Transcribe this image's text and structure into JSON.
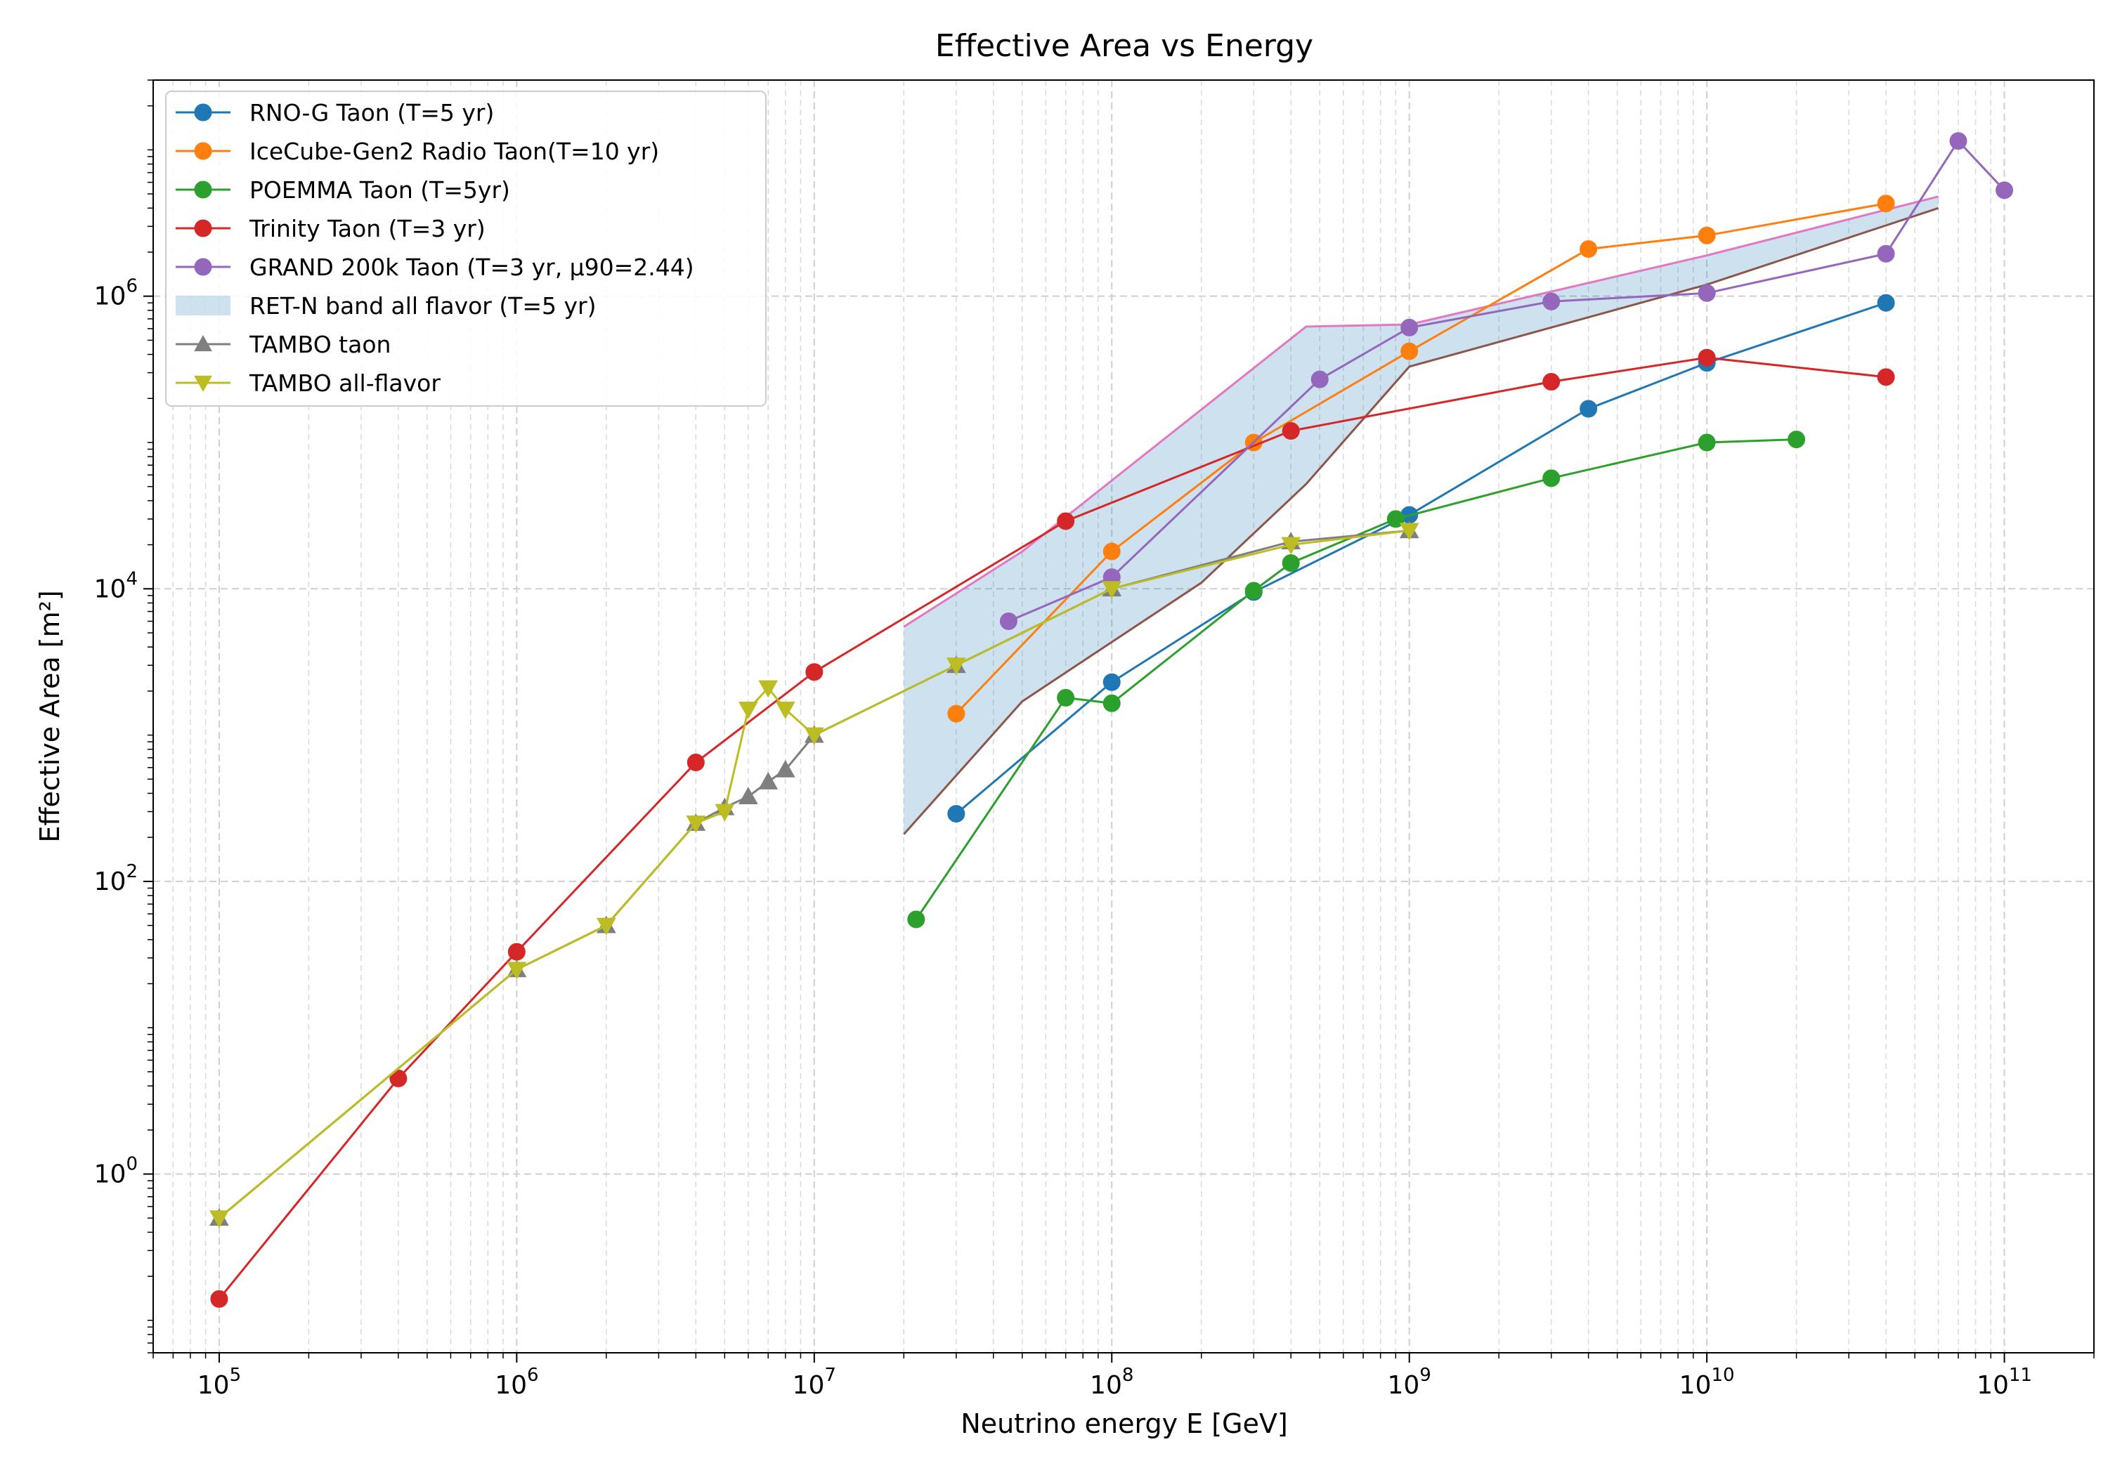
{
  "chart_data": {
    "type": "line",
    "title": "Effective Area vs Energy",
    "xlabel": "Neutrino energy E [GeV]",
    "ylabel": "Effective Area [m²]",
    "xscale": "log",
    "yscale": "log",
    "xlim": [
      60000,
      200000000000
    ],
    "ylim": [
      0.06,
      30000000
    ],
    "x_ticks": [
      {
        "value": 100000,
        "base": "10",
        "exp": "5"
      },
      {
        "value": 1000000,
        "base": "10",
        "exp": "6"
      },
      {
        "value": 10000000,
        "base": "10",
        "exp": "7"
      },
      {
        "value": 100000000,
        "base": "10",
        "exp": "8"
      },
      {
        "value": 1000000000,
        "base": "10",
        "exp": "9"
      },
      {
        "value": 10000000000,
        "base": "10",
        "exp": "10"
      },
      {
        "value": 100000000000,
        "base": "10",
        "exp": "11"
      }
    ],
    "y_ticks": [
      {
        "value": 1,
        "base": "10",
        "exp": "0"
      },
      {
        "value": 100,
        "base": "10",
        "exp": "2"
      },
      {
        "value": 10000,
        "base": "10",
        "exp": "4"
      },
      {
        "value": 1000000,
        "base": "10",
        "exp": "6"
      }
    ],
    "grid": true,
    "legend_position": "top-left",
    "series": [
      {
        "name": "RNO-G Taon (T=5 yr)",
        "color": "#1f77b4",
        "marker": "circle",
        "x": [
          30000000,
          100000000,
          300000000,
          1000000000,
          4000000000,
          10000000000,
          40000000000
        ],
        "y": [
          290,
          2300,
          9500,
          32000,
          170000,
          350000,
          900000
        ]
      },
      {
        "name": "IceCube-Gen2 Radio Taon(T=10 yr)",
        "color": "#ff7f0e",
        "marker": "circle",
        "x": [
          30000000,
          100000000,
          300000000,
          1000000000,
          4000000000,
          10000000000,
          40000000000
        ],
        "y": [
          1400,
          18000,
          100000,
          420000,
          2100000,
          2600000,
          4300000
        ]
      },
      {
        "name": "POEMMA Taon (T=5yr)",
        "color": "#2ca02c",
        "marker": "circle",
        "x": [
          22000000,
          70000000,
          100000000,
          300000000,
          400000000,
          900000000,
          3000000000,
          10000000000,
          20000000000
        ],
        "y": [
          55,
          1800,
          1650,
          9700,
          15000,
          30000,
          57000,
          100000,
          105000
        ]
      },
      {
        "name": "Trinity Taon (T=3 yr)",
        "color": "#d62728",
        "marker": "circle",
        "x": [
          100000,
          400000,
          1000000,
          4000000,
          10000000,
          70000000,
          400000000,
          3000000000,
          10000000000,
          40000000000
        ],
        "y": [
          0.14,
          4.5,
          33,
          650,
          2700,
          29000,
          120000,
          260000,
          380000,
          280000
        ]
      },
      {
        "name": "GRAND 200k Taon (T=3 yr, μ90=2.44)",
        "color": "#9467bd",
        "marker": "circle",
        "x": [
          45000000,
          100000000,
          500000000,
          1000000000,
          3000000000,
          10000000000,
          40000000000,
          70000000000,
          100000000000
        ],
        "y": [
          6000,
          12000,
          270000,
          610000,
          920000,
          1050000,
          1950000,
          11500000,
          5300000
        ]
      },
      {
        "name": "TAMBO taon",
        "color": "#7f7f7f",
        "marker": "triangle-up",
        "x": [
          100000,
          1000000,
          2000000,
          4000000,
          5000000,
          6000000,
          7000000,
          8000000,
          10000000,
          30000000,
          100000000,
          400000000,
          1000000000
        ],
        "y": [
          0.5,
          25,
          50,
          250,
          320,
          380,
          480,
          580,
          1000,
          3000,
          10000,
          21000,
          25000
        ]
      },
      {
        "name": "TAMBO all-flavor",
        "color": "#bcbd22",
        "marker": "triangle-down",
        "x": [
          100000,
          1000000,
          2000000,
          4000000,
          5000000,
          6000000,
          7000000,
          8000000,
          10000000,
          30000000,
          100000000,
          400000000,
          1000000000
        ],
        "y": [
          0.5,
          25,
          50,
          250,
          300,
          1500,
          2100,
          1500,
          1000,
          3000,
          10000,
          20000,
          25000
        ]
      }
    ],
    "band": {
      "name": "RET-N band all flavor (T=5 yr)",
      "fill_color": "#1f77b4",
      "upper_color": "#e377c2",
      "lower_color": "#8c564b",
      "upper": {
        "x": [
          20000000,
          50000000,
          450000000,
          1000000000,
          10000000000,
          60000000000
        ],
        "y": [
          5500,
          18000,
          620000,
          640000,
          1900000,
          4800000
        ]
      },
      "lower": {
        "x": [
          20000000,
          50000000,
          200000000,
          450000000,
          1000000000,
          10000000000,
          60000000000
        ],
        "y": [
          210,
          1700,
          11000,
          52000,
          330000,
          1200000,
          4000000
        ]
      }
    }
  }
}
